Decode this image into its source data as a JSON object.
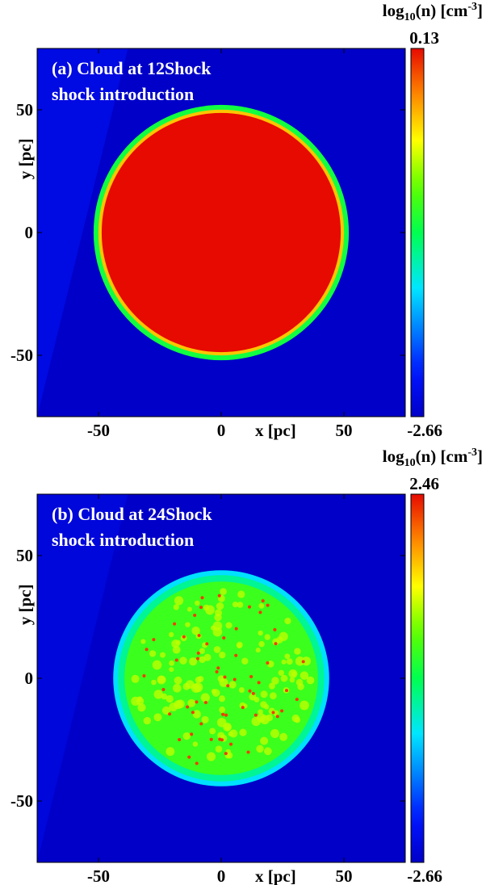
{
  "chart_data": [
    {
      "type": "heatmap",
      "panel_title_line1": "(a) Cloud at 12Shock",
      "panel_title_line2": "shock introduction",
      "xlabel": "x [pc]",
      "ylabel": "y [pc]",
      "xlim": [
        -75,
        75
      ],
      "ylim": [
        -75,
        75
      ],
      "x_ticks": [
        -50,
        0,
        50
      ],
      "y_ticks": [
        50,
        0,
        -50
      ],
      "colorbar": {
        "label_main": "log",
        "label_sub": "10",
        "label_mid": "(n) [cm",
        "label_sup": "-3",
        "label_end": "]",
        "max_label": "0.13",
        "min_label": "-2.66",
        "max": 0.13,
        "min": -2.66
      },
      "background_value": -2.66,
      "shocked_region": {
        "value": -2.5,
        "boundary_bottom_x": -75,
        "boundary_top_x": -38
      },
      "cloud": {
        "center": [
          0,
          0
        ],
        "radius_pc": 52,
        "interior_value": 0.13,
        "rim_values": [
          -0.4,
          -1.2
        ],
        "clumps": false
      }
    },
    {
      "type": "heatmap",
      "panel_title_line1": "(b) Cloud at 24Shock",
      "panel_title_line2": "shock introduction",
      "xlabel": "x [pc]",
      "ylabel": "y [pc]",
      "xlim": [
        -75,
        75
      ],
      "ylim": [
        -75,
        75
      ],
      "x_ticks": [
        -50,
        0,
        50
      ],
      "y_ticks": [
        50,
        0,
        -50
      ],
      "colorbar": {
        "label_main": "log",
        "label_sub": "10",
        "label_mid": "(n) [cm",
        "label_sup": "-3",
        "label_end": "]",
        "max_label": "2.46",
        "min_label": "-2.66",
        "max": 2.46,
        "min": -2.66
      },
      "background_value": -2.66,
      "shocked_region": {
        "value": -2.45,
        "boundary_bottom_x": -75,
        "boundary_top_x": -38
      },
      "cloud": {
        "center": [
          0,
          0
        ],
        "radius_pc": 44,
        "interior_value": 0.3,
        "rim_values": [
          -0.4,
          -0.9
        ],
        "clumps": true,
        "clump_value": 2.2
      }
    }
  ]
}
